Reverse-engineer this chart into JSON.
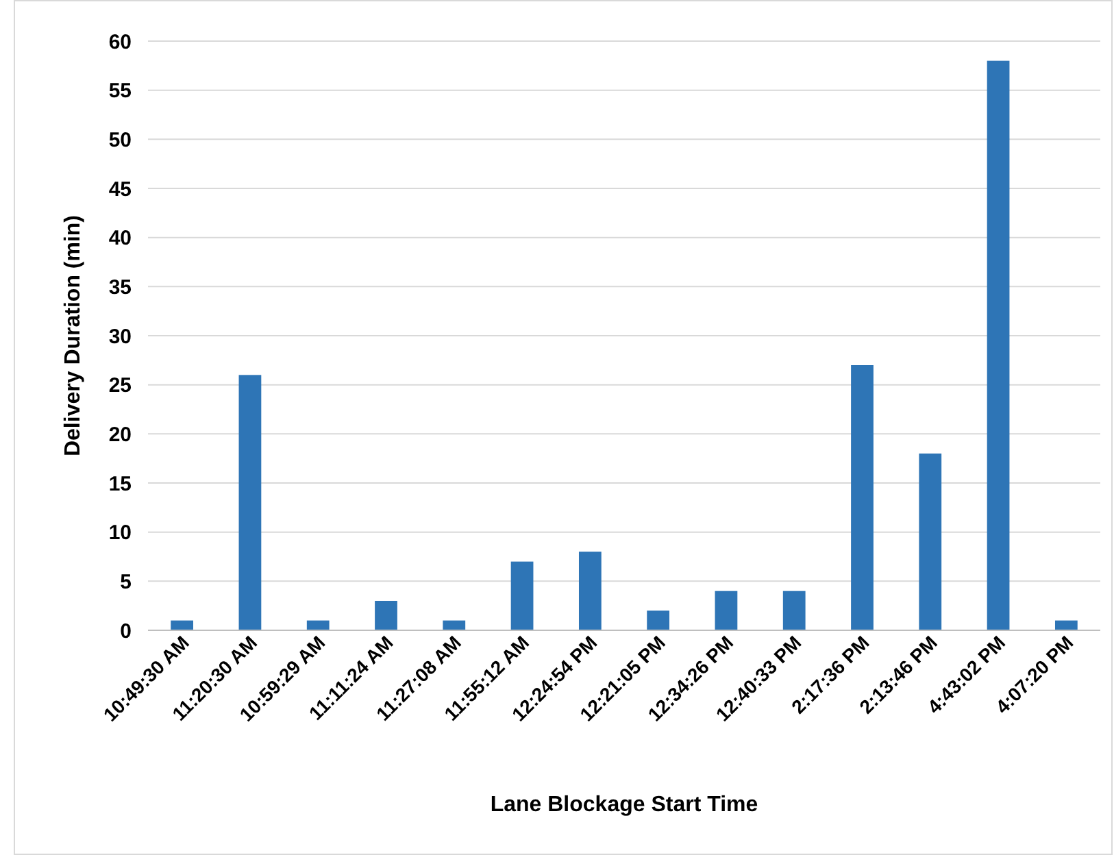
{
  "chart_data": {
    "type": "bar",
    "xlabel": "Lane Blockage Start Time",
    "ylabel": "Delivery Duration (min)",
    "categories": [
      "10:49:30 AM",
      "11:20:30 AM",
      "10:59:29 AM",
      "11:11:24 AM",
      "11:27:08 AM",
      "11:55:12 AM",
      "12:24:54 PM",
      "12:21:05 PM",
      "12:34:26 PM",
      "12:40:33 PM",
      "2:17:36 PM",
      "2:13:46 PM",
      "4:43:02 PM",
      "4:07:20 PM"
    ],
    "values": [
      1,
      26,
      1,
      3,
      1,
      7,
      8,
      2,
      4,
      4,
      27,
      18,
      58,
      1
    ],
    "color": "#2e75b6",
    "ylim": [
      0,
      60
    ],
    "yticks": [
      0,
      5,
      10,
      15,
      20,
      25,
      30,
      35,
      40,
      45,
      50,
      55,
      60
    ],
    "grid": "y"
  }
}
